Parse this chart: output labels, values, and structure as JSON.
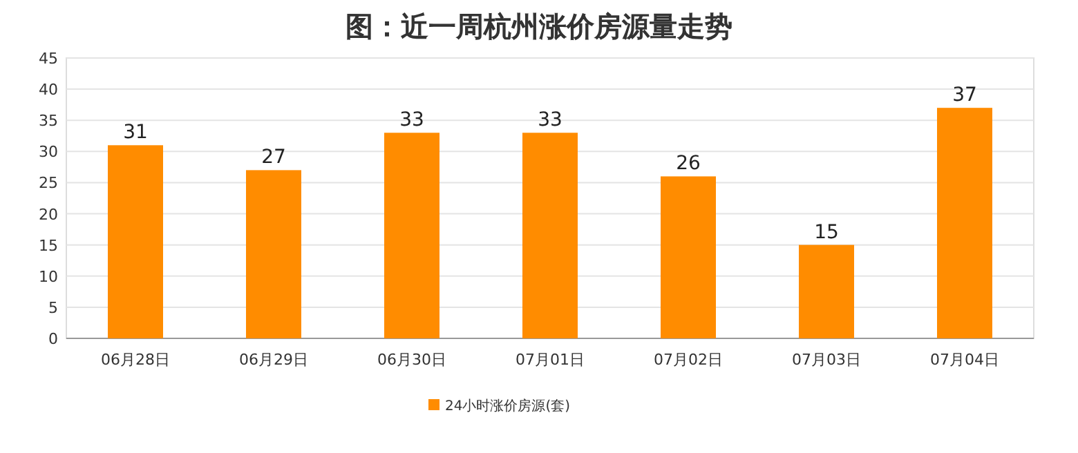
{
  "chart_data": {
    "type": "bar",
    "title": "图：近一周杭州涨价房源量走势",
    "categories": [
      "06月28日",
      "06月29日",
      "06月30日",
      "07月01日",
      "07月02日",
      "07月03日",
      "07月04日"
    ],
    "series": [
      {
        "name": "24小时涨价房源(套)",
        "color": "#ff8c00",
        "values": [
          31,
          27,
          33,
          33,
          26,
          15,
          37
        ]
      }
    ],
    "ylim": [
      0,
      45
    ],
    "yticks": [
      0,
      5,
      10,
      15,
      20,
      25,
      30,
      35,
      40,
      45
    ],
    "grid": "y",
    "legend": "bottom",
    "data_labels": true
  }
}
